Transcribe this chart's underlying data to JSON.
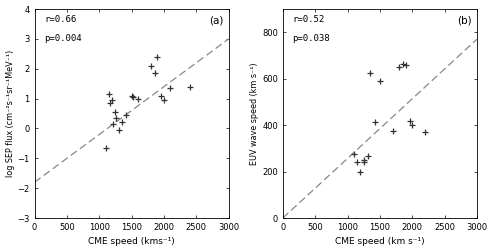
{
  "panel_a": {
    "label": "(a)",
    "r_text": "r=0.66",
    "p_text": "p=0.004",
    "xlabel": "CME speed (kms⁻¹)",
    "ylabel": "log SEP flux (cm⁻²s⁻¹sr⁻¹MeV⁻¹)",
    "xlim": [
      0,
      3000
    ],
    "ylim": [
      -3,
      4
    ],
    "xticks": [
      0,
      500,
      1000,
      1500,
      2000,
      2500,
      3000
    ],
    "yticks": [
      -3,
      -2,
      -1,
      0,
      1,
      2,
      3,
      4
    ],
    "data_x": [
      1100,
      1150,
      1160,
      1200,
      1210,
      1250,
      1260,
      1300,
      1350,
      1420,
      1500,
      1520,
      1600,
      1800,
      1860,
      1900,
      1960,
      2000,
      2100,
      2400
    ],
    "data_y": [
      -0.65,
      1.15,
      0.85,
      0.95,
      0.15,
      0.55,
      0.35,
      -0.05,
      0.2,
      0.45,
      1.1,
      1.05,
      1.0,
      2.1,
      1.85,
      2.4,
      1.1,
      0.95,
      1.35,
      1.4
    ],
    "fit_x": [
      0,
      3000
    ],
    "fit_y": [
      -1.8,
      3.0
    ]
  },
  "panel_b": {
    "label": "(b)",
    "r_text": "r=0.52",
    "p_text": "p=0.038",
    "xlabel": "CME speed (km s⁻¹)",
    "ylabel": "EUV wave speed (km s⁻¹)",
    "xlim": [
      0,
      3000
    ],
    "ylim": [
      0,
      900
    ],
    "xticks": [
      0,
      500,
      1000,
      1500,
      2000,
      2500,
      3000
    ],
    "yticks": [
      0,
      200,
      400,
      600,
      800
    ],
    "data_x": [
      1100,
      1150,
      1200,
      1250,
      1260,
      1310,
      1350,
      1420,
      1500,
      1700,
      1800,
      1860,
      1900,
      1960,
      2000,
      2200
    ],
    "data_y": [
      275,
      240,
      200,
      250,
      240,
      265,
      625,
      415,
      590,
      375,
      650,
      665,
      660,
      420,
      400,
      370
    ],
    "fit_x": [
      0,
      3000
    ],
    "fit_y": [
      0,
      770
    ]
  },
  "bg_color": "#ffffff",
  "plot_bg": "#ffffff",
  "dash_color": "#888888",
  "marker_color": "#333333"
}
